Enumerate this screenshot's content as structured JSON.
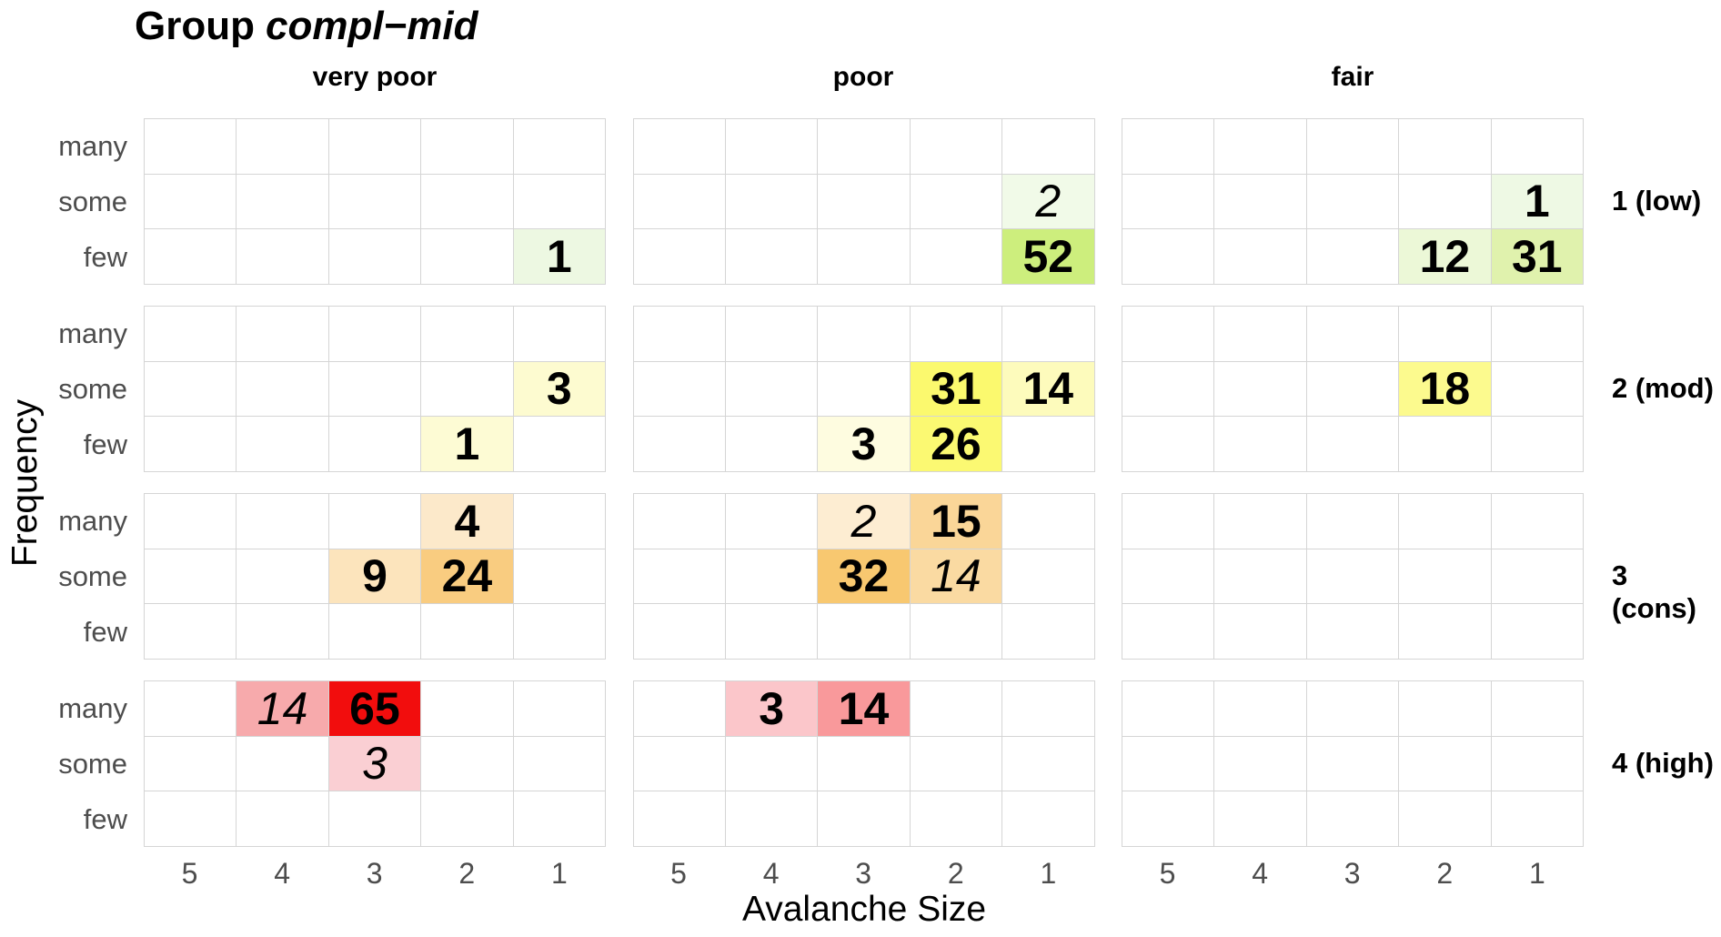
{
  "title": {
    "prefix": "Group",
    "group_name": "compl−mid"
  },
  "facets": {
    "columns": [
      "very poor",
      "poor",
      "fair"
    ],
    "rows": [
      "1 (low)",
      "2 (mod)",
      "3 (cons)",
      "4 (high)"
    ]
  },
  "axes": {
    "x_title": "Avalanche Size",
    "y_title": "Frequency",
    "x_ticks": [
      "5",
      "4",
      "3",
      "2",
      "1"
    ],
    "y_categories": [
      "many",
      "some",
      "few"
    ]
  },
  "colors": {
    "grid_line": "#d5d5d5",
    "axis_text": "#4d4d4d",
    "title_text": "#000000",
    "panel_background": "#ffffff"
  },
  "chart_data": {
    "type": "heatmap",
    "title": "Group compl−mid",
    "xlabel": "Avalanche Size",
    "ylabel": "Frequency",
    "facet_columns": [
      "very poor",
      "poor",
      "fair"
    ],
    "facet_rows": [
      "1 (low)",
      "2 (mod)",
      "3 (cons)",
      "4 (high)"
    ],
    "x_values": [
      5,
      4,
      3,
      2,
      1
    ],
    "y_values": [
      "many",
      "some",
      "few"
    ],
    "legend": "none",
    "grid": "all-cell-borders",
    "cells": [
      {
        "row": "1 (low)",
        "col": "very poor",
        "y": "few",
        "x": 1,
        "value": 1,
        "color": "#edf8e2",
        "italic": false
      },
      {
        "row": "1 (low)",
        "col": "poor",
        "y": "some",
        "x": 1,
        "value": 2,
        "color": "#f1fae8",
        "italic": true
      },
      {
        "row": "1 (low)",
        "col": "poor",
        "y": "few",
        "x": 1,
        "value": 52,
        "color": "#cdee7d",
        "italic": false
      },
      {
        "row": "1 (low)",
        "col": "fair",
        "y": "some",
        "x": 1,
        "value": 1,
        "color": "#eef9e4",
        "italic": false
      },
      {
        "row": "1 (low)",
        "col": "fair",
        "y": "few",
        "x": 2,
        "value": 12,
        "color": "#ecf8d7",
        "italic": false
      },
      {
        "row": "1 (low)",
        "col": "fair",
        "y": "few",
        "x": 1,
        "value": 31,
        "color": "#e0f2ad",
        "italic": false
      },
      {
        "row": "2 (mod)",
        "col": "very poor",
        "y": "some",
        "x": 1,
        "value": 3,
        "color": "#fdfbd0",
        "italic": false
      },
      {
        "row": "2 (mod)",
        "col": "very poor",
        "y": "few",
        "x": 2,
        "value": 1,
        "color": "#fdfbd4",
        "italic": false
      },
      {
        "row": "2 (mod)",
        "col": "poor",
        "y": "some",
        "x": 2,
        "value": 31,
        "color": "#fbf96e",
        "italic": false
      },
      {
        "row": "2 (mod)",
        "col": "poor",
        "y": "some",
        "x": 1,
        "value": 14,
        "color": "#fdfbbc",
        "italic": false
      },
      {
        "row": "2 (mod)",
        "col": "poor",
        "y": "few",
        "x": 3,
        "value": 3,
        "color": "#fefce0",
        "italic": false
      },
      {
        "row": "2 (mod)",
        "col": "poor",
        "y": "few",
        "x": 2,
        "value": 26,
        "color": "#fbf972",
        "italic": false
      },
      {
        "row": "2 (mod)",
        "col": "fair",
        "y": "some",
        "x": 2,
        "value": 18,
        "color": "#fcfa8e",
        "italic": false
      },
      {
        "row": "3 (cons)",
        "col": "very poor",
        "y": "many",
        "x": 2,
        "value": 4,
        "color": "#fce9ca",
        "italic": false
      },
      {
        "row": "3 (cons)",
        "col": "very poor",
        "y": "some",
        "x": 3,
        "value": 9,
        "color": "#fce4bc",
        "italic": false
      },
      {
        "row": "3 (cons)",
        "col": "very poor",
        "y": "some",
        "x": 2,
        "value": 24,
        "color": "#f9cc80",
        "italic": false
      },
      {
        "row": "3 (cons)",
        "col": "poor",
        "y": "many",
        "x": 3,
        "value": 2,
        "color": "#fdedd2",
        "italic": true
      },
      {
        "row": "3 (cons)",
        "col": "poor",
        "y": "many",
        "x": 2,
        "value": 15,
        "color": "#fad698",
        "italic": false
      },
      {
        "row": "3 (cons)",
        "col": "poor",
        "y": "some",
        "x": 3,
        "value": 32,
        "color": "#f8c870",
        "italic": false
      },
      {
        "row": "3 (cons)",
        "col": "poor",
        "y": "some",
        "x": 2,
        "value": 14,
        "color": "#fadaa2",
        "italic": true
      },
      {
        "row": "4 (high)",
        "col": "very poor",
        "y": "many",
        "x": 4,
        "value": 14,
        "color": "#f7aaac",
        "italic": true
      },
      {
        "row": "4 (high)",
        "col": "very poor",
        "y": "many",
        "x": 3,
        "value": 65,
        "color": "#f20d0d",
        "italic": false
      },
      {
        "row": "4 (high)",
        "col": "very poor",
        "y": "some",
        "x": 3,
        "value": 3,
        "color": "#facfd3",
        "italic": true
      },
      {
        "row": "4 (high)",
        "col": "poor",
        "y": "many",
        "x": 4,
        "value": 3,
        "color": "#fbc6ca",
        "italic": false
      },
      {
        "row": "4 (high)",
        "col": "poor",
        "y": "many",
        "x": 3,
        "value": 14,
        "color": "#f9999b",
        "italic": false
      }
    ]
  }
}
